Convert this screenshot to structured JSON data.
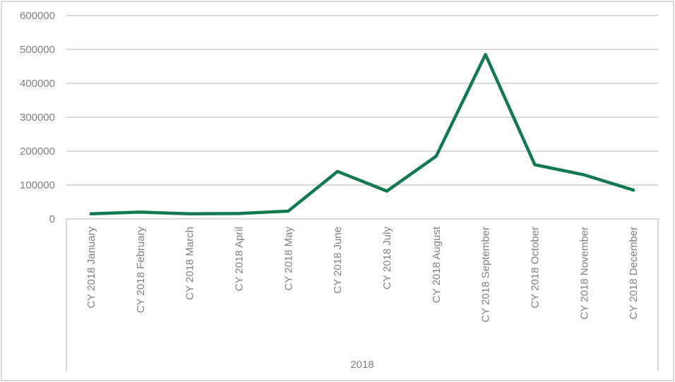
{
  "chart_data": {
    "type": "line",
    "title": "",
    "xlabel": "2018",
    "ylabel": "",
    "categories": [
      "CY 2018 January",
      "CY 2018 February",
      "CY 2018 March",
      "CY 2018 April",
      "CY 2018 May",
      "CY 2018 June",
      "CY 2018 July",
      "CY 2018 August",
      "CY 2018 September",
      "CY 2018 October",
      "CY 2018 November",
      "CY 2018 December"
    ],
    "values": [
      15000,
      20000,
      15000,
      16000,
      23000,
      140000,
      82000,
      185000,
      485000,
      160000,
      130000,
      85000
    ],
    "ylim": [
      0,
      600000
    ],
    "y_ticks": [
      0,
      100000,
      200000,
      300000,
      400000,
      500000,
      600000
    ],
    "grid": true,
    "legend": false,
    "colors": {
      "line": "#147850",
      "grid": "#d9d9d9",
      "axis_box": "#d9d9d9",
      "tick_label": "#7f7f7f",
      "outer_border": "#d9d9d9",
      "background": "#ffffff"
    }
  }
}
